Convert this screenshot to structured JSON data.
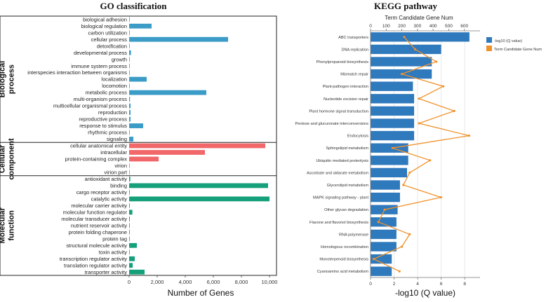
{
  "chart_data": [
    {
      "type": "bar",
      "orientation": "horizontal",
      "title": "GO classification",
      "xlabel": "Number of Genes",
      "xlim": [
        0,
        10500
      ],
      "xticks": [
        0,
        2000,
        4000,
        6000,
        8000,
        10000
      ],
      "xtick_labels": [
        "0",
        "2,000",
        "4,000",
        "6,000",
        "8,000",
        "10,000"
      ],
      "groups": [
        {
          "name": "Biological\nprocess",
          "color": "#3a9cc7",
          "categories": [
            "biological adhesion",
            "biological regulation",
            "carbon utilization",
            "cellular process",
            "detoxification",
            "developmental process",
            "growth",
            "immune system process",
            "interspecies interaction between organisms",
            "localization",
            "locomotion",
            "metabolic process",
            "multi-organism process",
            "multicellular organismal process",
            "reproduction",
            "reproductive process",
            "response to stimulus",
            "rhythmic process",
            "signaling"
          ],
          "values": [
            5,
            1600,
            5,
            7050,
            10,
            130,
            20,
            40,
            30,
            1250,
            5,
            5500,
            60,
            100,
            100,
            100,
            1000,
            5,
            300
          ]
        },
        {
          "name": "Cellular\ncomponent",
          "color": "#f1676a",
          "categories": [
            "cellular anatomical entity",
            "intracellular",
            "protein-containing complex",
            "virion",
            "virion part"
          ],
          "values": [
            9700,
            5400,
            2100,
            5,
            5
          ]
        },
        {
          "name": "Molecular\nfunction",
          "color": "#14a07a",
          "categories": [
            "antioxidant activity",
            "binding",
            "cargo receptor activity",
            "catalytic activity",
            "molecular carrier activity",
            "molecular function regulator",
            "molecular transducer activity",
            "nutrient reservoir activity",
            "protein folding chaperone",
            "protein tag",
            "structural molecule activity",
            "toxin activity",
            "transcription regulator activity",
            "translation regulator activity",
            "transporter activity"
          ],
          "values": [
            80,
            9900,
            5,
            10000,
            5,
            230,
            50,
            20,
            30,
            5,
            550,
            5,
            400,
            250,
            1100
          ]
        }
      ]
    },
    {
      "type": "bar+line",
      "orientation": "horizontal",
      "title": "KEGG pathway",
      "top_axis_label": "Term Candidate Gene Num",
      "xlabel": "-log10 (Q value)",
      "bar_xlim": [
        0,
        9.3
      ],
      "bar_xticks": [
        0,
        2,
        4,
        6,
        8
      ],
      "line_xlim": [
        0,
        700
      ],
      "line_xticks": [
        0,
        100,
        200,
        300,
        400,
        500,
        600
      ],
      "legend": [
        "-log10  (Q value)",
        "Term Candidate Gene Num"
      ],
      "bar_color": "#2f79bd",
      "line_color": "#f0922b",
      "categories": [
        "ABC transporters",
        "DNA replication",
        "Phenylpropanoid biosynthesis",
        "Mismatch repair",
        "Plant-pathogen interaction",
        "Nucleotide excision repair",
        "Plant hormone signal transduction",
        "Pentose and glucuronate interconversions",
        "Endocytosis",
        "Sphingolipid metabolism",
        "Ubiquitin mediated proteolysis",
        "Ascorbate and aldarate metabolism",
        "Glycerolipid metabolism",
        "MAPK signaling pathway - plant",
        "Other glycan degradation",
        "Flavone and flavonol biosynthesis",
        "RNA polymerase",
        "Homologous recombination",
        "Monoterpenoid biosynthesis",
        "Cyanoamino acid metabolism"
      ],
      "bar_values": [
        8.4,
        6.0,
        5.2,
        5.2,
        3.6,
        3.7,
        3.7,
        3.7,
        3.7,
        3.2,
        3.2,
        3.1,
        2.5,
        2.5,
        2.3,
        2.2,
        2.2,
        2.2,
        1.8,
        1.8
      ],
      "line_values": [
        215,
        285,
        420,
        200,
        465,
        310,
        535,
        310,
        630,
        140,
        380,
        250,
        210,
        450,
        90,
        50,
        250,
        200,
        20,
        185
      ]
    }
  ]
}
